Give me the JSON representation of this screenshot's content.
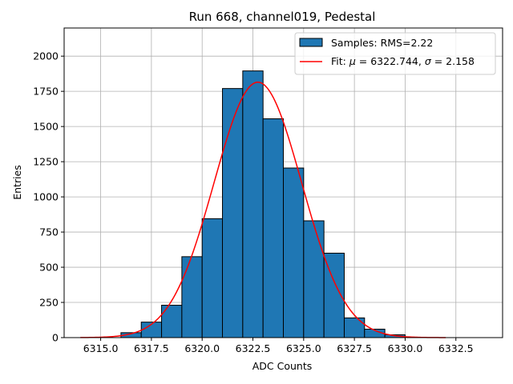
{
  "chart_data": {
    "type": "bar",
    "title": "Run 668, channel019, Pedestal",
    "xlabel": "ADC Counts",
    "ylabel": "Entries",
    "xlim": [
      6313.2,
      6334.8
    ],
    "ylim": [
      0,
      2200
    ],
    "xticks": [
      6315.0,
      6317.5,
      6320.0,
      6322.5,
      6325.0,
      6327.5,
      6330.0,
      6332.5
    ],
    "xtick_labels": [
      "6315.0",
      "6317.5",
      "6320.0",
      "6322.5",
      "6325.0",
      "6327.5",
      "6330.0",
      "6332.5"
    ],
    "yticks": [
      0,
      250,
      500,
      750,
      1000,
      1250,
      1500,
      1750,
      2000
    ],
    "ytick_labels": [
      "0",
      "250",
      "500",
      "750",
      "1000",
      "1250",
      "1500",
      "1750",
      "2000"
    ],
    "grid": true,
    "legend_position": "top-right",
    "bin_edges": [
      6316,
      6317,
      6318,
      6319,
      6320,
      6321,
      6322,
      6323,
      6324,
      6325,
      6326,
      6327,
      6328,
      6329,
      6330
    ],
    "histogram": {
      "name": "Samples: RMS=2.22",
      "counts": [
        35,
        110,
        230,
        575,
        845,
        1770,
        1895,
        1555,
        1205,
        830,
        600,
        140,
        60,
        20
      ],
      "color": "#1f77b4",
      "edgecolor": "#000000"
    },
    "fit": {
      "name_prefix": "Fit: ",
      "mu_symbol": "μ",
      "mu_text": " = 6322.744, ",
      "sigma_symbol": "σ",
      "sigma_text": " = 2.158",
      "mu": 6322.744,
      "sigma": 2.158,
      "amplitude": 1815,
      "x_range": [
        6314,
        6332
      ],
      "color": "#ff0000"
    }
  }
}
